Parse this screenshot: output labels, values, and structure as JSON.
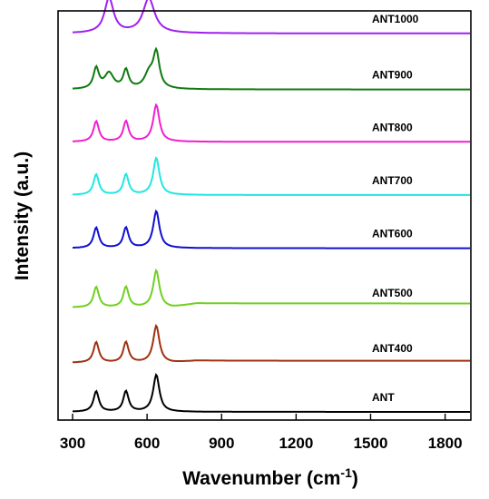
{
  "chart_data": {
    "type": "line",
    "title": "",
    "xlabel_main": "Wavenumber (cm",
    "xlabel_sup": "-1",
    "xlabel_tail": ")",
    "ylabel": "Intensity (a.u.)",
    "xlim": [
      300,
      1900
    ],
    "xticks": [
      300,
      600,
      900,
      1200,
      1500,
      1800
    ],
    "grid": false,
    "legend": "none",
    "series": [
      {
        "name": "ANT1000",
        "color": "#a020f0",
        "baseline": 0.945,
        "tail": 0.0,
        "peaks": [
          {
            "x": 447,
            "h": 0.085,
            "w": 22
          },
          {
            "x": 607,
            "h": 0.085,
            "w": 28
          }
        ]
      },
      {
        "name": "ANT900",
        "color": "#107a10",
        "baseline": 0.808,
        "tail": 0.0,
        "peaks": [
          {
            "x": 395,
            "h": 0.05,
            "w": 13
          },
          {
            "x": 447,
            "h": 0.038,
            "w": 22
          },
          {
            "x": 515,
            "h": 0.045,
            "w": 13
          },
          {
            "x": 608,
            "h": 0.035,
            "w": 22
          },
          {
            "x": 637,
            "h": 0.085,
            "w": 15
          }
        ]
      },
      {
        "name": "ANT800",
        "color": "#f020d0",
        "baseline": 0.68,
        "tail": 0.0,
        "peaks": [
          {
            "x": 395,
            "h": 0.05,
            "w": 13
          },
          {
            "x": 515,
            "h": 0.05,
            "w": 13
          },
          {
            "x": 637,
            "h": 0.09,
            "w": 15
          }
        ]
      },
      {
        "name": "ANT700",
        "color": "#20e8e0",
        "baseline": 0.55,
        "tail": 0.0,
        "peaks": [
          {
            "x": 395,
            "h": 0.05,
            "w": 13
          },
          {
            "x": 515,
            "h": 0.05,
            "w": 13
          },
          {
            "x": 637,
            "h": 0.09,
            "w": 15
          }
        ]
      },
      {
        "name": "ANT600",
        "color": "#1010d0",
        "baseline": 0.42,
        "tail": 0.0,
        "peaks": [
          {
            "x": 395,
            "h": 0.05,
            "w": 13
          },
          {
            "x": 515,
            "h": 0.05,
            "w": 13
          },
          {
            "x": 637,
            "h": 0.09,
            "w": 15
          }
        ]
      },
      {
        "name": "ANT500",
        "color": "#70d020",
        "baseline": 0.275,
        "tail": 0.01,
        "peaks": [
          {
            "x": 395,
            "h": 0.05,
            "w": 13
          },
          {
            "x": 515,
            "h": 0.05,
            "w": 13
          },
          {
            "x": 637,
            "h": 0.09,
            "w": 15
          }
        ]
      },
      {
        "name": "ANT400",
        "color": "#a03010",
        "baseline": 0.14,
        "tail": 0.005,
        "peaks": [
          {
            "x": 395,
            "h": 0.05,
            "w": 13
          },
          {
            "x": 515,
            "h": 0.05,
            "w": 13
          },
          {
            "x": 637,
            "h": 0.09,
            "w": 15
          }
        ]
      },
      {
        "name": "ANT",
        "color": "#000000",
        "baseline": 0.02,
        "tail": 0.0,
        "peaks": [
          {
            "x": 395,
            "h": 0.05,
            "w": 13
          },
          {
            "x": 515,
            "h": 0.05,
            "w": 13
          },
          {
            "x": 637,
            "h": 0.09,
            "w": 15
          }
        ]
      }
    ]
  }
}
